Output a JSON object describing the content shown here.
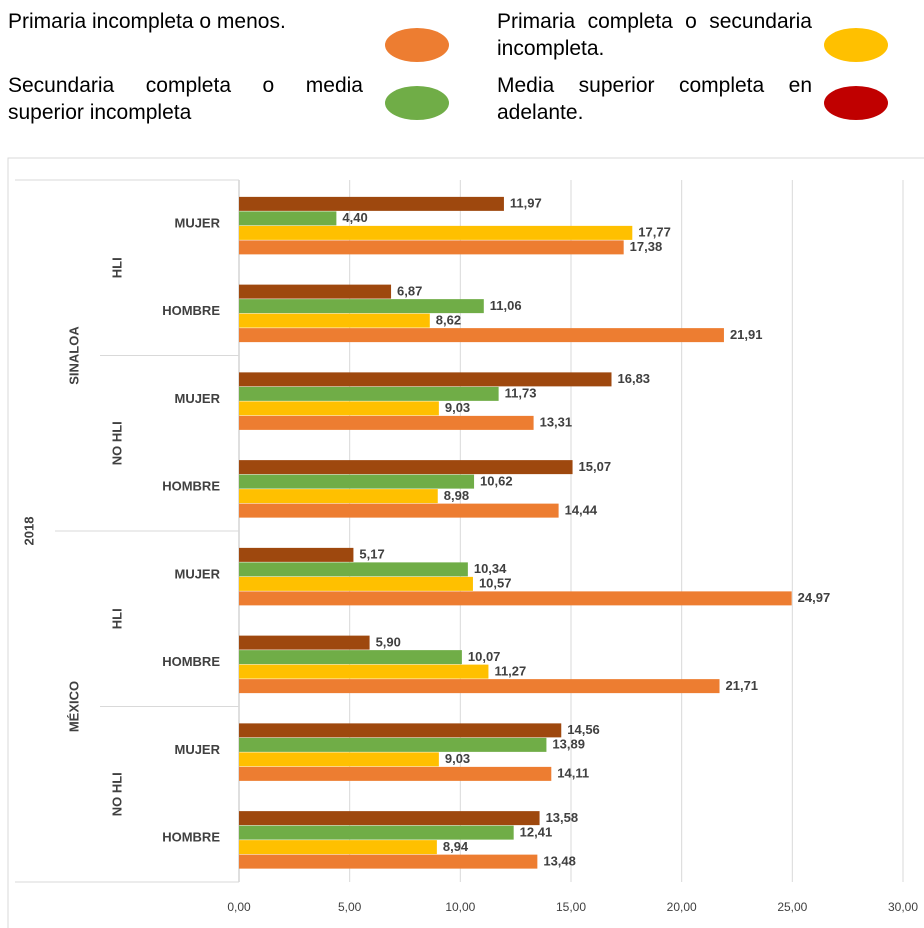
{
  "chart_data": {
    "type": "bar",
    "orientation": "horizontal",
    "year": "2018",
    "groups": [
      "SINALOA",
      "MÉXICO"
    ],
    "subgroups": [
      "HLI",
      "NO HLI",
      "HLI",
      "NO HLI"
    ],
    "categories": [
      "MUJER",
      "HOMBRE",
      "MUJER",
      "HOMBRE",
      "MUJER",
      "HOMBRE",
      "MUJER",
      "HOMBRE"
    ],
    "series": [
      {
        "name": "Primaria incompleta o menos.",
        "color": "#ed7d31",
        "legend_color": "#ed7d31",
        "values": [
          17.38,
          21.91,
          13.31,
          14.44,
          24.97,
          21.71,
          14.11,
          13.48
        ],
        "value_labels": [
          "17,38",
          "21,91",
          "13,31",
          "14,44",
          "24,97",
          "21,71",
          "14,11",
          "13,48"
        ]
      },
      {
        "name": "Primaria completa o secundaria incompleta.",
        "color": "#ffc000",
        "legend_color": "#ffc000",
        "values": [
          17.77,
          8.62,
          9.03,
          8.98,
          10.57,
          11.27,
          9.03,
          8.94
        ],
        "value_labels": [
          "17,77",
          "8,62",
          "9,03",
          "8,98",
          "10,57",
          "11,27",
          "9,03",
          "8,94"
        ]
      },
      {
        "name": "Secundaria completa o media superior incompleta",
        "color": "#70ad47",
        "legend_color": "#70ad47",
        "values": [
          4.4,
          11.06,
          11.73,
          10.62,
          10.34,
          10.07,
          13.89,
          12.41
        ],
        "value_labels": [
          "4,40",
          "11,06",
          "11,73",
          "10,62",
          "10,34",
          "10,07",
          "13,89",
          "12,41"
        ]
      },
      {
        "name": "Media superior completa en adelante.",
        "color": "#9e480e",
        "legend_color": "#c00000",
        "values": [
          11.97,
          6.87,
          16.83,
          15.07,
          5.17,
          5.9,
          14.56,
          13.58
        ],
        "value_labels": [
          "11,97",
          "6,87",
          "16,83",
          "15,07",
          "5,17",
          "5,90",
          "14,56",
          "13,58"
        ]
      }
    ],
    "xlim": [
      0,
      30
    ],
    "xticks": [
      {
        "value": 0,
        "label": "0,00"
      },
      {
        "value": 5,
        "label": "5,00"
      },
      {
        "value": 10,
        "label": "10,00"
      },
      {
        "value": 15,
        "label": "15,00"
      },
      {
        "value": 20,
        "label": "20,00"
      },
      {
        "value": 25,
        "label": "25,00"
      },
      {
        "value": 30,
        "label": "30,00"
      }
    ],
    "grid": true
  }
}
